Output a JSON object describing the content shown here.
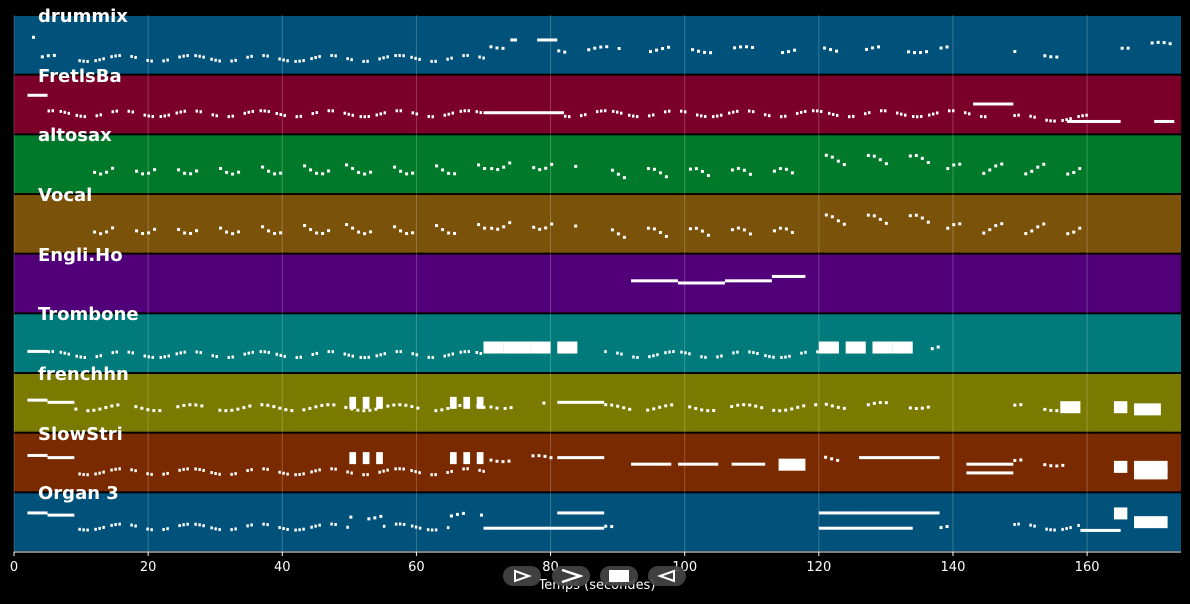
{
  "chart_data": {
    "type": "piano-roll",
    "xlabel": "Temps (secondes)",
    "xlim": [
      0,
      174
    ],
    "xticks": [
      0,
      20,
      40,
      60,
      80,
      100,
      120,
      140,
      160
    ],
    "grid": true,
    "tracks": [
      {
        "name": "drummix",
        "color": "#00527a"
      },
      {
        "name": "FretlsBa",
        "color": "#7a002a"
      },
      {
        "name": "altosax",
        "color": "#007a2a"
      },
      {
        "name": "Vocal",
        "color": "#7a520a"
      },
      {
        "name": "Engli.Ho",
        "color": "#52007a"
      },
      {
        "name": "Trombone",
        "color": "#007a7a"
      },
      {
        "name": "frenchhn",
        "color": "#7a7a00"
      },
      {
        "name": "SlowStri",
        "color": "#7a2a00"
      },
      {
        "name": "Organ 3",
        "color": "#00527a"
      }
    ],
    "notes": [
      [
        [
          0,
          3,
          0.3,
          "r",
          0.5
        ],
        [
          4,
          9,
          0.8,
          "r",
          0.5
        ],
        [
          9,
          70,
          0.8,
          "d",
          0.6
        ],
        [
          70,
          74,
          0.5,
          "r",
          0.5
        ],
        [
          74,
          75,
          0.4,
          "b",
          0.5
        ],
        [
          78,
          81,
          0.4,
          "b",
          0.5
        ],
        [
          81,
          90,
          0.6,
          "r",
          0.5
        ],
        [
          90,
          92,
          0.6,
          "r",
          0.5
        ],
        [
          92,
          138,
          0.6,
          "r",
          0.5
        ],
        [
          138,
          139,
          0.6,
          "r",
          0.5
        ],
        [
          149,
          159,
          0.7,
          "r",
          0.5
        ],
        [
          165,
          174,
          0.5,
          "r",
          0.5
        ]
      ],
      [
        [
          2,
          5,
          0.3,
          "b",
          0.5
        ],
        [
          5,
          70,
          0.7,
          "d",
          0.6
        ],
        [
          70,
          82,
          0.7,
          "b",
          0.4
        ],
        [
          82,
          145,
          0.7,
          "d",
          0.6
        ],
        [
          143,
          149,
          0.5,
          "b",
          0.5
        ],
        [
          149,
          160,
          0.8,
          "d",
          0.6
        ],
        [
          157,
          165,
          0.9,
          "b",
          0.4
        ],
        [
          170,
          173,
          0.9,
          "b",
          0.5
        ]
      ],
      [
        [
          10,
          70,
          0.6,
          "g",
          0.6
        ],
        [
          71,
          84,
          0.5,
          "g",
          0.6
        ],
        [
          89,
          116,
          0.7,
          "g",
          0.6
        ],
        [
          120,
          137,
          0.4,
          "g",
          0.6
        ],
        [
          139,
          159,
          0.6,
          "g",
          0.6
        ]
      ],
      [
        [
          10,
          70,
          0.6,
          "g",
          0.6
        ],
        [
          71,
          84,
          0.5,
          "g",
          0.6
        ],
        [
          89,
          116,
          0.7,
          "g",
          0.6
        ],
        [
          120,
          137,
          0.4,
          "g",
          0.6
        ],
        [
          139,
          159,
          0.6,
          "g",
          0.6
        ]
      ],
      [
        [
          92,
          99,
          0.45,
          "b",
          0.5
        ],
        [
          99,
          106,
          0.5,
          "b",
          0.5
        ],
        [
          106,
          113,
          0.45,
          "b",
          0.5
        ],
        [
          113,
          118,
          0.35,
          "b",
          0.5
        ]
      ],
      [
        [
          2,
          5,
          0.7,
          "b",
          0.5
        ],
        [
          5,
          70,
          0.75,
          "d",
          0.6
        ],
        [
          70,
          73,
          0.6,
          "B",
          0.8
        ],
        [
          73,
          77,
          0.6,
          "B",
          0.8
        ],
        [
          77,
          80,
          0.6,
          "B",
          0.8
        ],
        [
          81,
          84,
          0.6,
          "B",
          0.8
        ],
        [
          88,
          120,
          0.75,
          "d",
          0.6
        ],
        [
          120,
          123,
          0.6,
          "B",
          0.8
        ],
        [
          124,
          127,
          0.6,
          "B",
          0.8
        ],
        [
          128,
          131,
          0.6,
          "B",
          0.8
        ],
        [
          131,
          134,
          0.6,
          "B",
          0.8
        ],
        [
          134,
          138,
          0.6,
          "r",
          0.5
        ]
      ],
      [
        [
          2,
          5,
          0.45,
          "b",
          0.5
        ],
        [
          5,
          9,
          0.5,
          "b",
          0.5
        ],
        [
          9,
          70,
          0.6,
          "r",
          0.8
        ],
        [
          50,
          51,
          0.5,
          "B",
          0.7
        ],
        [
          52,
          53,
          0.5,
          "B",
          0.7
        ],
        [
          54,
          55,
          0.5,
          "B",
          0.7
        ],
        [
          65,
          66,
          0.5,
          "B",
          0.7
        ],
        [
          67,
          68,
          0.5,
          "B",
          0.7
        ],
        [
          69,
          70,
          0.5,
          "B",
          0.7
        ],
        [
          70,
          72,
          0.55,
          "r",
          0.6
        ],
        [
          73,
          75,
          0.55,
          "r",
          0.6
        ],
        [
          77,
          79,
          0.55,
          "r",
          0.6
        ],
        [
          81,
          88,
          0.5,
          "b",
          0.4
        ],
        [
          88,
          120,
          0.6,
          "r",
          0.8
        ],
        [
          120,
          138,
          0.55,
          "r",
          0.6
        ],
        [
          149,
          156,
          0.6,
          "r",
          0.6
        ],
        [
          156,
          159,
          0.6,
          "B",
          0.7
        ],
        [
          164,
          166,
          0.6,
          "B",
          0.6
        ],
        [
          167,
          171,
          0.65,
          "B",
          0.9
        ]
      ],
      [
        [
          2,
          5,
          0.35,
          "b",
          0.5
        ],
        [
          5,
          9,
          0.4,
          "b",
          0.5
        ],
        [
          9,
          70,
          0.7,
          "d",
          0.6
        ],
        [
          50,
          51,
          0.4,
          "B",
          0.7
        ],
        [
          52,
          53,
          0.4,
          "B",
          0.7
        ],
        [
          54,
          55,
          0.4,
          "B",
          0.7
        ],
        [
          65,
          66,
          0.4,
          "B",
          0.7
        ],
        [
          67,
          68,
          0.4,
          "B",
          0.7
        ],
        [
          69,
          70,
          0.4,
          "B",
          0.7
        ],
        [
          70,
          81,
          0.4,
          "r",
          0.6
        ],
        [
          81,
          88,
          0.4,
          "b",
          0.4
        ],
        [
          92,
          98,
          0.55,
          "b",
          0.5
        ],
        [
          99,
          105,
          0.55,
          "b",
          0.5
        ],
        [
          107,
          112,
          0.55,
          "b",
          0.5
        ],
        [
          114,
          118,
          0.55,
          "B",
          0.8
        ],
        [
          119,
          126,
          0.4,
          "r",
          0.5
        ],
        [
          126,
          138,
          0.4,
          "b",
          0.4
        ],
        [
          142,
          149,
          0.55,
          "b",
          0.5
        ],
        [
          142,
          149,
          0.75,
          "b",
          0.4
        ],
        [
          149,
          159,
          0.5,
          "r",
          0.6
        ],
        [
          164,
          166,
          0.6,
          "B",
          0.6
        ],
        [
          167,
          172,
          0.6,
          "B",
          0.6
        ],
        [
          167,
          172,
          0.75,
          "B",
          0.6
        ]
      ],
      [
        [
          2,
          5,
          0.3,
          "b",
          0.5
        ],
        [
          5,
          9,
          0.35,
          "b",
          0.5
        ],
        [
          9,
          50,
          0.6,
          "d",
          0.6
        ],
        [
          50,
          55,
          0.35,
          "r",
          0.7
        ],
        [
          55,
          65,
          0.6,
          "d",
          0.6
        ],
        [
          65,
          70,
          0.35,
          "r",
          0.7
        ],
        [
          70,
          88,
          0.65,
          "b",
          0.4
        ],
        [
          81,
          88,
          0.3,
          "b",
          0.4
        ],
        [
          88,
          89,
          0.65,
          "r",
          0.5
        ],
        [
          120,
          126,
          0.3,
          "b",
          0.4
        ],
        [
          120,
          134,
          0.65,
          "b",
          0.4
        ],
        [
          126,
          138,
          0.3,
          "b",
          0.4
        ],
        [
          138,
          139,
          0.65,
          "r",
          0.5
        ],
        [
          149,
          159,
          0.6,
          "d",
          0.6
        ],
        [
          159,
          165,
          0.7,
          "b",
          0.4
        ],
        [
          164,
          166,
          0.3,
          "B",
          0.7
        ],
        [
          167,
          172,
          0.5,
          "B",
          0.9
        ]
      ]
    ]
  },
  "controls": {
    "rewind": "rewind-icon",
    "play": "play-icon",
    "stop": "stop-icon",
    "back": "back-icon"
  }
}
